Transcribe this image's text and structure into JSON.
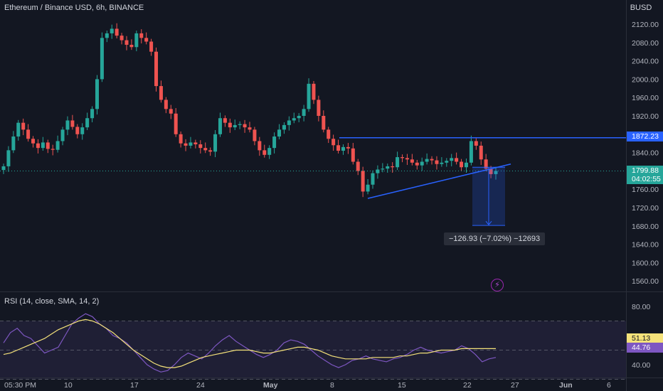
{
  "header": {
    "symbol_title": "Ethereum / Binance USD, 6h, BINANCE",
    "currency": "BUSD"
  },
  "price_tags": {
    "resistance": "1872.23",
    "last_price": "1799.88",
    "countdown": "04:02:55",
    "rsi": "51.13",
    "rsi_sma": "44.76"
  },
  "measure_label": "−126.93 (−7.02%) −12693",
  "rsi_title": "RSI (14, close, SMA, 14, 2)",
  "colors": {
    "background": "#131722",
    "up_candle": "#26a69a",
    "down_candle": "#ef5350",
    "drawing": "#2962ff",
    "rsi_line": "#7e57c2",
    "rsi_sma": "#f5e27a",
    "tag_blue": "#2962ff",
    "tag_green": "#26a69a"
  },
  "chart_data": [
    {
      "type": "candlestick",
      "title": "Ethereum / Binance USD, 6h, BINANCE",
      "y_ticks": [
        2120,
        2080,
        2040,
        2000,
        1960,
        1920,
        1880,
        1840,
        1800,
        1760,
        1720,
        1680,
        1640,
        1600,
        1560
      ],
      "y_tick_labels": [
        "2120.00",
        "2080.00",
        "2040.00",
        "2000.00",
        "1960.00",
        "1920.00",
        "1880.00",
        "1840.00",
        "1800.00",
        "1760.00",
        "1720.00",
        "1680.00",
        "1640.00",
        "1600.00",
        "1560.00"
      ],
      "ylim": [
        1542,
        2160
      ],
      "x_tick_labels": [
        "05:30 PM",
        "10",
        "17",
        "24",
        "May",
        "8",
        "15",
        "22",
        "27",
        "Jun",
        "6"
      ],
      "close_prices": [
        1810,
        1845,
        1875,
        1905,
        1890,
        1870,
        1860,
        1850,
        1862,
        1848,
        1846,
        1865,
        1890,
        1910,
        1896,
        1880,
        1895,
        1915,
        1935,
        2000,
        2090,
        2100,
        2110,
        2095,
        2085,
        2075,
        2070,
        2100,
        2090,
        2082,
        2060,
        1985,
        1955,
        1935,
        1925,
        1880,
        1860,
        1855,
        1862,
        1858,
        1850,
        1845,
        1842,
        1880,
        1915,
        1905,
        1895,
        1900,
        1902,
        1895,
        1890,
        1865,
        1845,
        1835,
        1850,
        1875,
        1890,
        1900,
        1910,
        1915,
        1920,
        1935,
        1990,
        1955,
        1920,
        1890,
        1870,
        1856,
        1844,
        1852,
        1849,
        1820,
        1800,
        1755,
        1770,
        1795,
        1803,
        1805,
        1810,
        1808,
        1830,
        1828,
        1825,
        1818,
        1812,
        1820,
        1826,
        1823,
        1815,
        1818,
        1822,
        1828,
        1820,
        1808,
        1818,
        1865,
        1855,
        1825,
        1805,
        1793,
        1800
      ],
      "resistance_level": 1872.23,
      "last_price": 1799.88,
      "trendline": {
        "start_price": 1740,
        "end_price": 1815
      },
      "measure": {
        "from": 1808,
        "to": 1681,
        "label": "−126.93 (−7.02%) −12693"
      }
    },
    {
      "type": "line",
      "title": "RSI (14, close, SMA, 14, 2)",
      "y_ticks": [
        80,
        60,
        40
      ],
      "y_tick_labels": [
        "80.00",
        "60.00",
        "40.00"
      ],
      "ylim": [
        30,
        84
      ],
      "band": [
        70,
        30
      ],
      "midline": 50,
      "series": [
        {
          "name": "RSI",
          "values": [
            55,
            62,
            65,
            60,
            58,
            53,
            48,
            50,
            52,
            60,
            68,
            72,
            75,
            73,
            68,
            65,
            60,
            58,
            55,
            50,
            45,
            40,
            37,
            35,
            36,
            40,
            45,
            48,
            46,
            44,
            48,
            53,
            57,
            60,
            56,
            53,
            50,
            47,
            45,
            47,
            50,
            55,
            57,
            56,
            54,
            50,
            46,
            43,
            40,
            38,
            40,
            43,
            44,
            46,
            44,
            43,
            42,
            44,
            45,
            47,
            50,
            52,
            50,
            49,
            48,
            49,
            50,
            53,
            51,
            47,
            42,
            44,
            45
          ]
        },
        {
          "name": "SMA",
          "values": [
            47,
            48,
            50,
            52,
            54,
            56,
            58,
            61,
            64,
            66,
            68,
            70,
            71,
            70,
            68,
            65,
            62,
            58,
            54,
            50,
            47,
            44,
            41,
            39,
            38,
            38,
            39,
            41,
            43,
            45,
            46,
            47,
            48,
            49,
            50,
            50,
            50,
            49,
            48,
            48,
            49,
            50,
            51,
            52,
            52,
            51,
            50,
            48,
            46,
            45,
            44,
            44,
            44,
            44,
            45,
            45,
            45,
            45,
            46,
            46,
            47,
            48,
            48,
            49,
            50,
            50,
            50,
            51,
            51,
            51,
            51,
            51,
            51
          ]
        }
      ]
    }
  ]
}
